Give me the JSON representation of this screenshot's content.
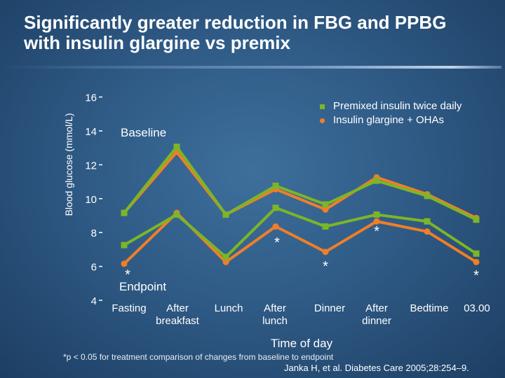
{
  "title": "Significantly greater reduction in FBG and PPBG with insulin glargine vs premix",
  "colors": {
    "premix": "#7cb527",
    "glargine": "#f07e27"
  },
  "chart_data": {
    "type": "line",
    "title": "Significantly greater reduction in FBG and PPBG with insulin glargine vs premix",
    "xlabel": "Time of day",
    "ylabel": "Blood glucose (mmol/L)",
    "ylim": [
      4,
      16
    ],
    "yticks": [
      "4",
      "6",
      "8",
      "10",
      "12",
      "14",
      "16"
    ],
    "categories": [
      "Fasting",
      "After breakfast",
      "Lunch",
      "After lunch",
      "Dinner",
      "After dinner",
      "Bedtime",
      "03.00"
    ],
    "legend": [
      "Premixed insulin twice daily",
      "Insulin glargine + OHAs"
    ],
    "series": [
      {
        "name": "Premixed insulin twice daily",
        "period": "Baseline",
        "values": [
          9.2,
          13.1,
          9.1,
          10.8,
          9.7,
          11.1,
          10.2,
          8.8
        ]
      },
      {
        "name": "Insulin glargine + OHAs",
        "period": "Baseline",
        "values": [
          9.2,
          12.8,
          9.1,
          10.6,
          9.4,
          11.3,
          10.3,
          8.9
        ]
      },
      {
        "name": "Premixed insulin twice daily",
        "period": "Endpoint",
        "values": [
          7.3,
          9.1,
          6.6,
          9.5,
          8.4,
          9.1,
          8.7,
          6.8
        ]
      },
      {
        "name": "Insulin glargine + OHAs",
        "period": "Endpoint",
        "values": [
          6.2,
          9.2,
          6.3,
          8.4,
          6.9,
          8.7,
          8.1,
          6.3
        ]
      }
    ],
    "annotations": [
      {
        "text": "Baseline",
        "near": "upper lines, fasting"
      },
      {
        "text": "Endpoint",
        "near": "lower lines, fasting"
      },
      {
        "text": "*",
        "category": "Fasting"
      },
      {
        "text": "*",
        "category": "After lunch"
      },
      {
        "text": "*",
        "category": "Dinner"
      },
      {
        "text": "*",
        "category": "After dinner"
      },
      {
        "text": "*",
        "category": "03.00"
      }
    ]
  },
  "footnote": "*p < 0.05 for treatment comparison of changes from baseline to endpoint",
  "citation": "Janka H, et al. Diabetes Care 2005;28:254–9."
}
